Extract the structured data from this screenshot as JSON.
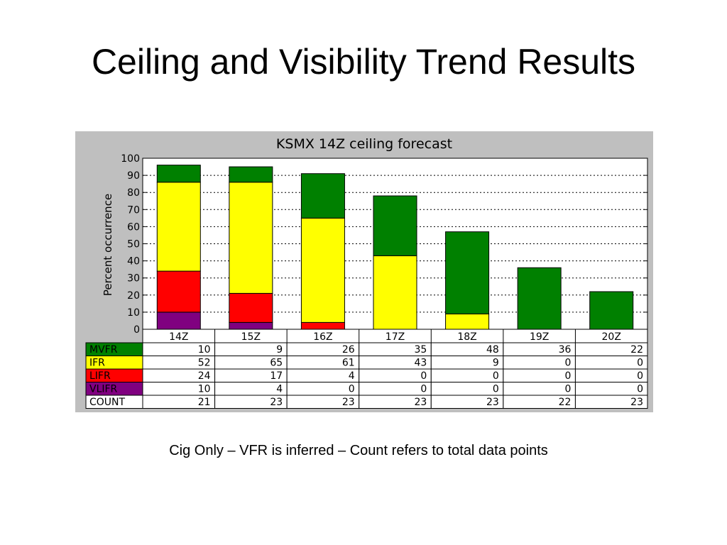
{
  "slide_title": "Ceiling and Visibility Trend Results",
  "caption": "Cig Only – VFR is inferred – Count refers to total data points",
  "chart_data": {
    "type": "bar",
    "stacked": true,
    "title": "KSMX 14Z ceiling forecast",
    "xlabel": "",
    "ylabel": "Percent occurrence",
    "ylim": [
      0,
      100
    ],
    "yticks": [
      0,
      10,
      20,
      30,
      40,
      50,
      60,
      70,
      80,
      90,
      100
    ],
    "grid": true,
    "categories": [
      "14Z",
      "15Z",
      "16Z",
      "17Z",
      "18Z",
      "19Z",
      "20Z"
    ],
    "series": [
      {
        "name": "VLIFR",
        "color": "#800080",
        "values": [
          10,
          4,
          0,
          0,
          0,
          0,
          0
        ]
      },
      {
        "name": "LIFR",
        "color": "#ff0000",
        "values": [
          24,
          17,
          4,
          0,
          0,
          0,
          0
        ]
      },
      {
        "name": "IFR",
        "color": "#ffff00",
        "values": [
          52,
          65,
          61,
          43,
          9,
          0,
          0
        ]
      },
      {
        "name": "MVFR",
        "color": "#008000",
        "values": [
          10,
          9,
          26,
          35,
          48,
          36,
          22
        ]
      }
    ],
    "table_rows": [
      {
        "label": "MVFR",
        "color": "#008000",
        "values": [
          10,
          9,
          26,
          35,
          48,
          36,
          22
        ]
      },
      {
        "label": "IFR",
        "color": "#ffff00",
        "values": [
          52,
          65,
          61,
          43,
          9,
          0,
          0
        ]
      },
      {
        "label": "LIFR",
        "color": "#ff0000",
        "values": [
          24,
          17,
          4,
          0,
          0,
          0,
          0
        ]
      },
      {
        "label": "VLIFR",
        "color": "#800080",
        "values": [
          10,
          4,
          0,
          0,
          0,
          0,
          0
        ]
      },
      {
        "label": "COUNT",
        "color": "#ffffff",
        "values": [
          21,
          23,
          23,
          23,
          23,
          22,
          23
        ]
      }
    ]
  }
}
